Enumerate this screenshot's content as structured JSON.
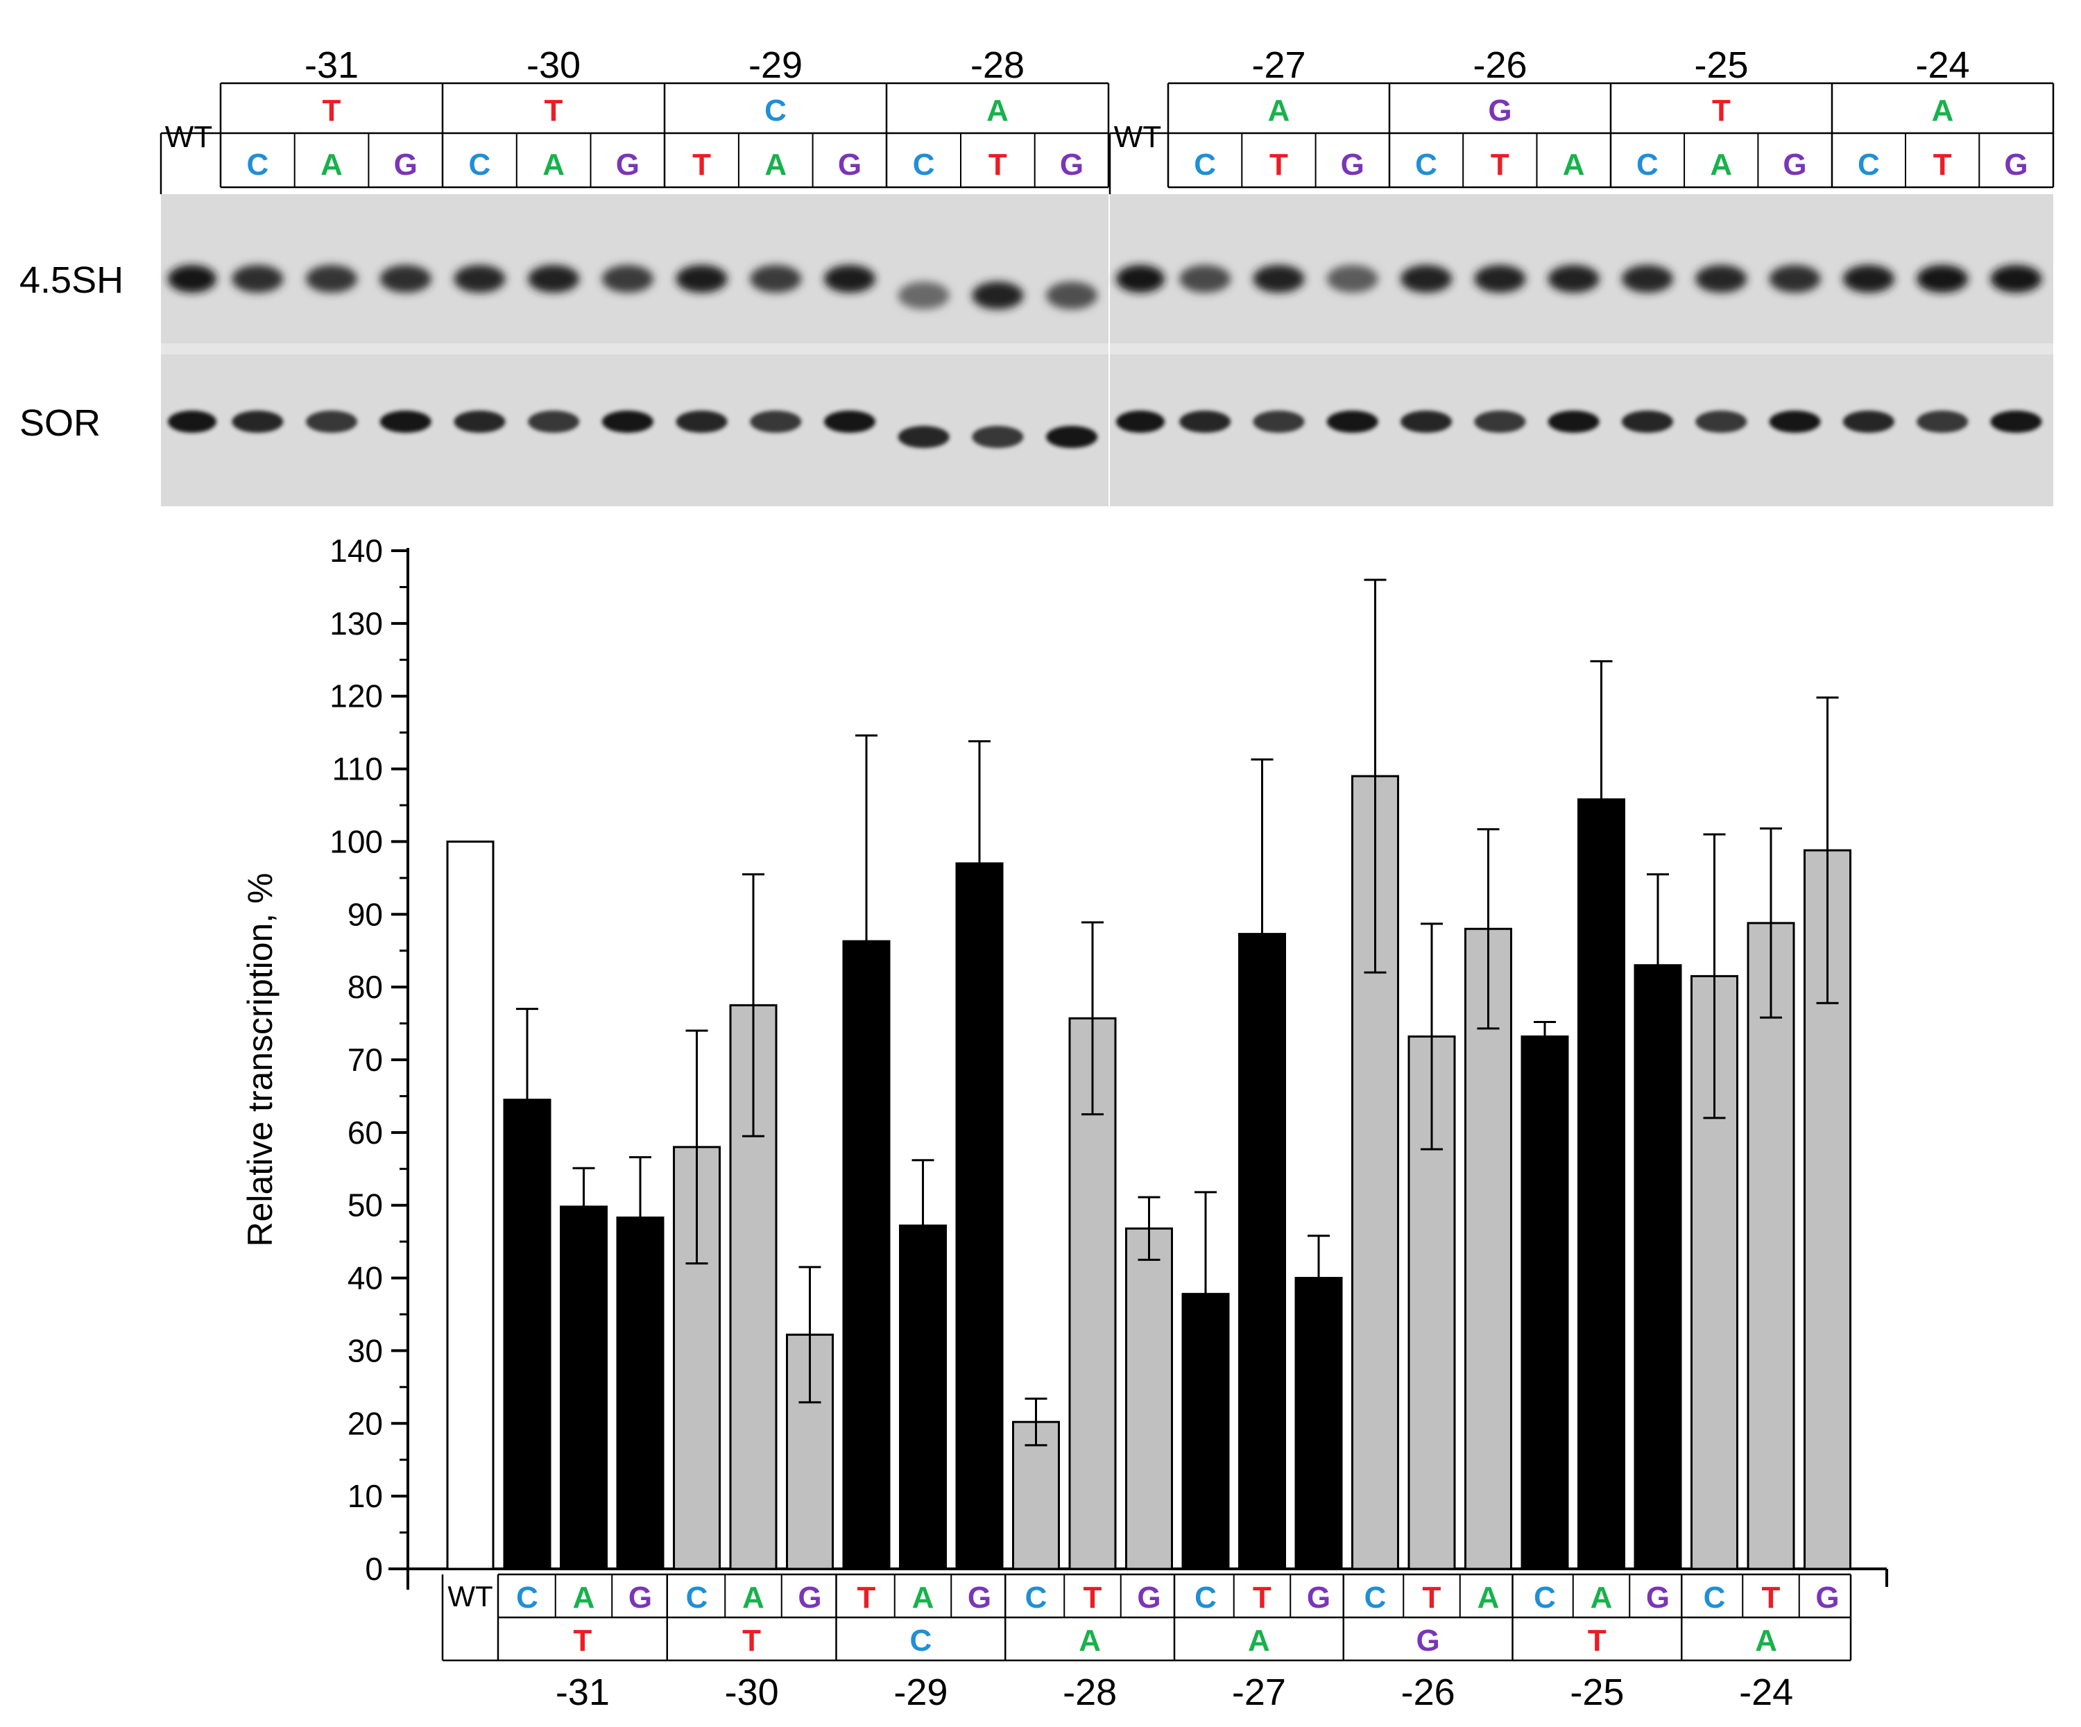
{
  "colors": {
    "T": "#ee1c25",
    "A": "#17b24b",
    "C": "#1f8fd6",
    "G": "#7a35b8",
    "mut_black": "#000000",
    "mut_gray": "#c0c0c0",
    "wt_fill": "#ffffff"
  },
  "gel": {
    "wt_label": "WT",
    "band_labels": [
      "4.5SH",
      "SOR"
    ],
    "panels": [
      {
        "wt_label": "WT",
        "groups": [
          {
            "position": "-31",
            "original": "T",
            "mutants": [
              "C",
              "A",
              "G"
            ]
          },
          {
            "position": "-30",
            "original": "T",
            "mutants": [
              "C",
              "A",
              "G"
            ]
          },
          {
            "position": "-29",
            "original": "C",
            "mutants": [
              "T",
              "A",
              "G"
            ]
          },
          {
            "position": "-28",
            "original": "A",
            "mutants": [
              "C",
              "T",
              "G"
            ]
          }
        ]
      },
      {
        "wt_label": "WT",
        "groups": [
          {
            "position": "-27",
            "original": "A",
            "mutants": [
              "C",
              "T",
              "G"
            ]
          },
          {
            "position": "-26",
            "original": "G",
            "mutants": [
              "C",
              "T",
              "A"
            ]
          },
          {
            "position": "-25",
            "original": "T",
            "mutants": [
              "C",
              "A",
              "G"
            ]
          },
          {
            "position": "-24",
            "original": "A",
            "mutants": [
              "C",
              "T",
              "G"
            ]
          }
        ]
      }
    ]
  },
  "chart_data": {
    "type": "bar",
    "ylabel": "Relative transcription, %",
    "ylim": [
      0,
      140
    ],
    "yticks": [
      0,
      10,
      20,
      30,
      40,
      50,
      60,
      70,
      80,
      90,
      100,
      110,
      120,
      130,
      140
    ],
    "wt_label": "WT",
    "wt_value": 100,
    "groups": [
      {
        "position": "-31",
        "original": "T",
        "style": "black",
        "bars": [
          {
            "nuc": "C",
            "value": 64.5,
            "error": 12.5
          },
          {
            "nuc": "A",
            "value": 49.8,
            "error": 5.3
          },
          {
            "nuc": "G",
            "value": 48.3,
            "error": 8.3
          }
        ]
      },
      {
        "position": "-30",
        "original": "T",
        "style": "gray",
        "bars": [
          {
            "nuc": "C",
            "value": 58,
            "error": 16
          },
          {
            "nuc": "A",
            "value": 77.5,
            "error": 18
          },
          {
            "nuc": "G",
            "value": 32.2,
            "error": 9.3
          }
        ]
      },
      {
        "position": "-29",
        "original": "C",
        "style": "black",
        "bars": [
          {
            "nuc": "T",
            "value": 86.3,
            "error": 28.3
          },
          {
            "nuc": "A",
            "value": 47.2,
            "error": 9
          },
          {
            "nuc": "G",
            "value": 97,
            "error": 16.8
          }
        ]
      },
      {
        "position": "-28",
        "original": "A",
        "style": "gray",
        "bars": [
          {
            "nuc": "C",
            "value": 20.2,
            "error": 3.2
          },
          {
            "nuc": "T",
            "value": 75.7,
            "error": 13.2
          },
          {
            "nuc": "G",
            "value": 46.8,
            "error": 4.3
          }
        ]
      },
      {
        "position": "-27",
        "original": "A",
        "style": "black",
        "bars": [
          {
            "nuc": "C",
            "value": 37.8,
            "error": 14
          },
          {
            "nuc": "T",
            "value": 87.3,
            "error": 24
          },
          {
            "nuc": "G",
            "value": 40,
            "error": 5.8
          }
        ]
      },
      {
        "position": "-26",
        "original": "G",
        "style": "gray",
        "bars": [
          {
            "nuc": "C",
            "value": 109,
            "error": 27
          },
          {
            "nuc": "T",
            "value": 73.2,
            "error": 15.5
          },
          {
            "nuc": "A",
            "value": 88,
            "error": 13.7
          }
        ]
      },
      {
        "position": "-25",
        "original": "T",
        "style": "black",
        "bars": [
          {
            "nuc": "C",
            "value": 73.2,
            "error": 2
          },
          {
            "nuc": "A",
            "value": 105.8,
            "error": 19
          },
          {
            "nuc": "G",
            "value": 83,
            "error": 12.5
          }
        ]
      },
      {
        "position": "-24",
        "original": "A",
        "style": "gray",
        "bars": [
          {
            "nuc": "C",
            "value": 81.5,
            "error": 19.5
          },
          {
            "nuc": "T",
            "value": 88.8,
            "error": 13
          },
          {
            "nuc": "G",
            "value": 98.8,
            "error": 21
          }
        ]
      }
    ]
  }
}
